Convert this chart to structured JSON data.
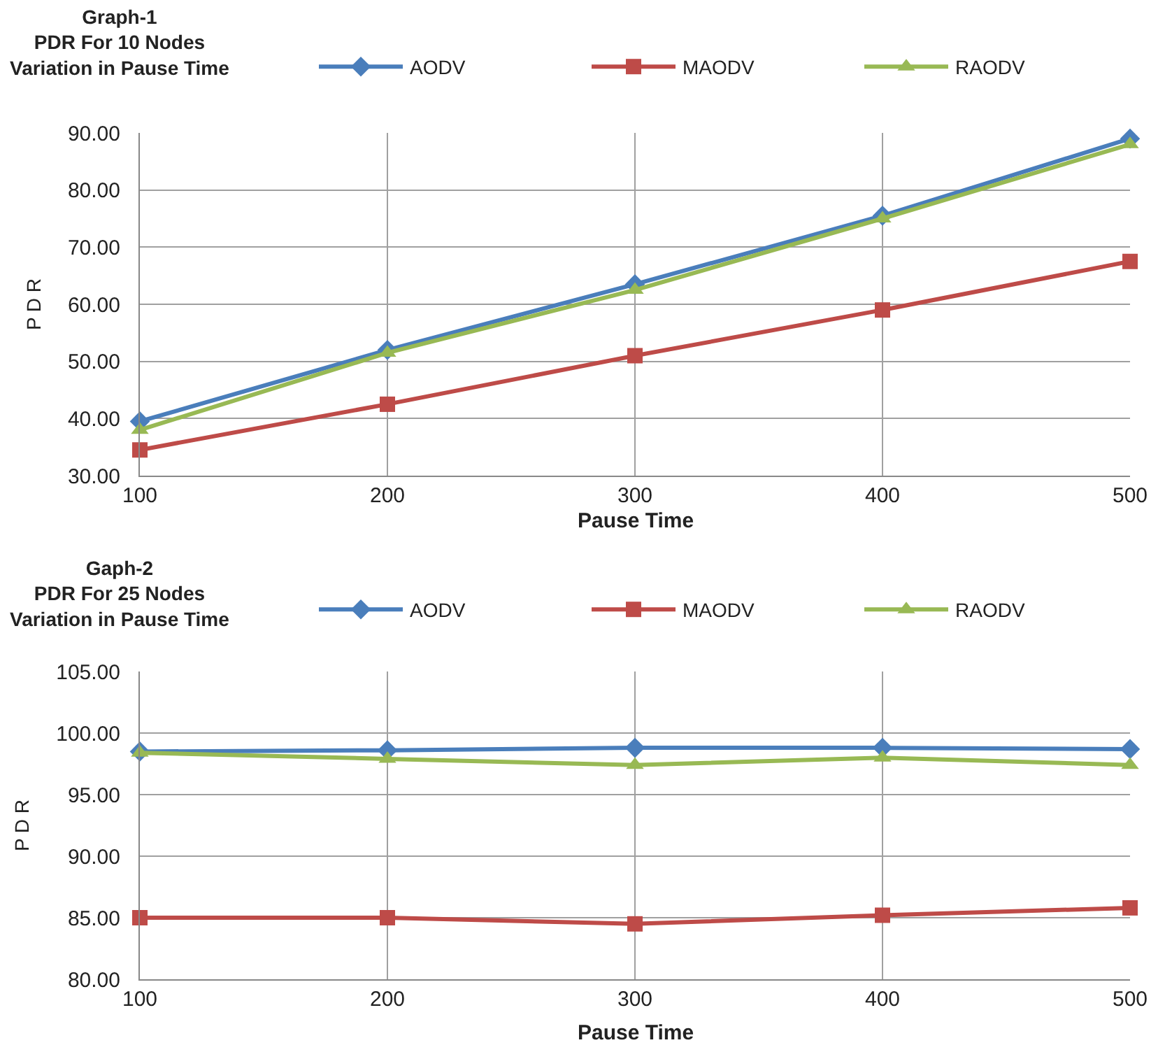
{
  "chart_data": [
    {
      "type": "line",
      "title": "Graph-1\nPDR For 10 Nodes\nVariation in Pause Time",
      "xlabel": "Pause Time",
      "ylabel": "P D R",
      "x": [
        100,
        200,
        300,
        400,
        500
      ],
      "xlim": [
        100,
        500
      ],
      "xticks": [
        100,
        200,
        300,
        400,
        500
      ],
      "ylim": [
        30,
        90
      ],
      "yticks": [
        {
          "value": 30,
          "label": "30.00"
        },
        {
          "value": 40,
          "label": "40.00"
        },
        {
          "value": 50,
          "label": "50.00"
        },
        {
          "value": 60,
          "label": "60.00"
        },
        {
          "value": 70,
          "label": "70.00"
        },
        {
          "value": 80,
          "label": "80.00"
        },
        {
          "value": 90,
          "label": "90.00"
        }
      ],
      "grid": true,
      "legend": "top right",
      "series": [
        {
          "name": "AODV",
          "color": "#4a7ebb",
          "marker": "diamond",
          "values": [
            39.5,
            52,
            63.5,
            75.5,
            89
          ]
        },
        {
          "name": "MAODV",
          "color": "#be4b48",
          "marker": "square",
          "values": [
            34.5,
            42.5,
            51,
            59,
            67.5
          ]
        },
        {
          "name": "RAODV",
          "color": "#98b954",
          "marker": "triangle",
          "values": [
            38,
            51.5,
            62.5,
            75,
            88
          ]
        }
      ]
    },
    {
      "type": "line",
      "title": "Gaph-2\nPDR For 25 Nodes\nVariation in Pause Time",
      "xlabel": "Pause Time",
      "ylabel": "P D R",
      "x": [
        100,
        200,
        300,
        400,
        500
      ],
      "xlim": [
        100,
        500
      ],
      "xticks": [
        100,
        200,
        300,
        400,
        500
      ],
      "ylim": [
        80,
        105
      ],
      "yticks": [
        {
          "value": 80,
          "label": "80.00"
        },
        {
          "value": 85,
          "label": "85.00"
        },
        {
          "value": 90,
          "label": "90.00"
        },
        {
          "value": 95,
          "label": "95.00"
        },
        {
          "value": 100,
          "label": "100.00"
        },
        {
          "value": 105,
          "label": "105.00"
        }
      ],
      "grid": true,
      "legend": "top right",
      "series": [
        {
          "name": "AODV",
          "color": "#4a7ebb",
          "marker": "diamond",
          "values": [
            98.5,
            98.6,
            98.8,
            98.8,
            98.7
          ]
        },
        {
          "name": "MAODV",
          "color": "#be4b48",
          "marker": "square",
          "values": [
            85,
            85,
            84.5,
            85.2,
            85.8
          ]
        },
        {
          "name": "RAODV",
          "color": "#98b954",
          "marker": "triangle",
          "values": [
            98.4,
            97.9,
            97.4,
            98,
            97.4
          ]
        }
      ]
    }
  ]
}
